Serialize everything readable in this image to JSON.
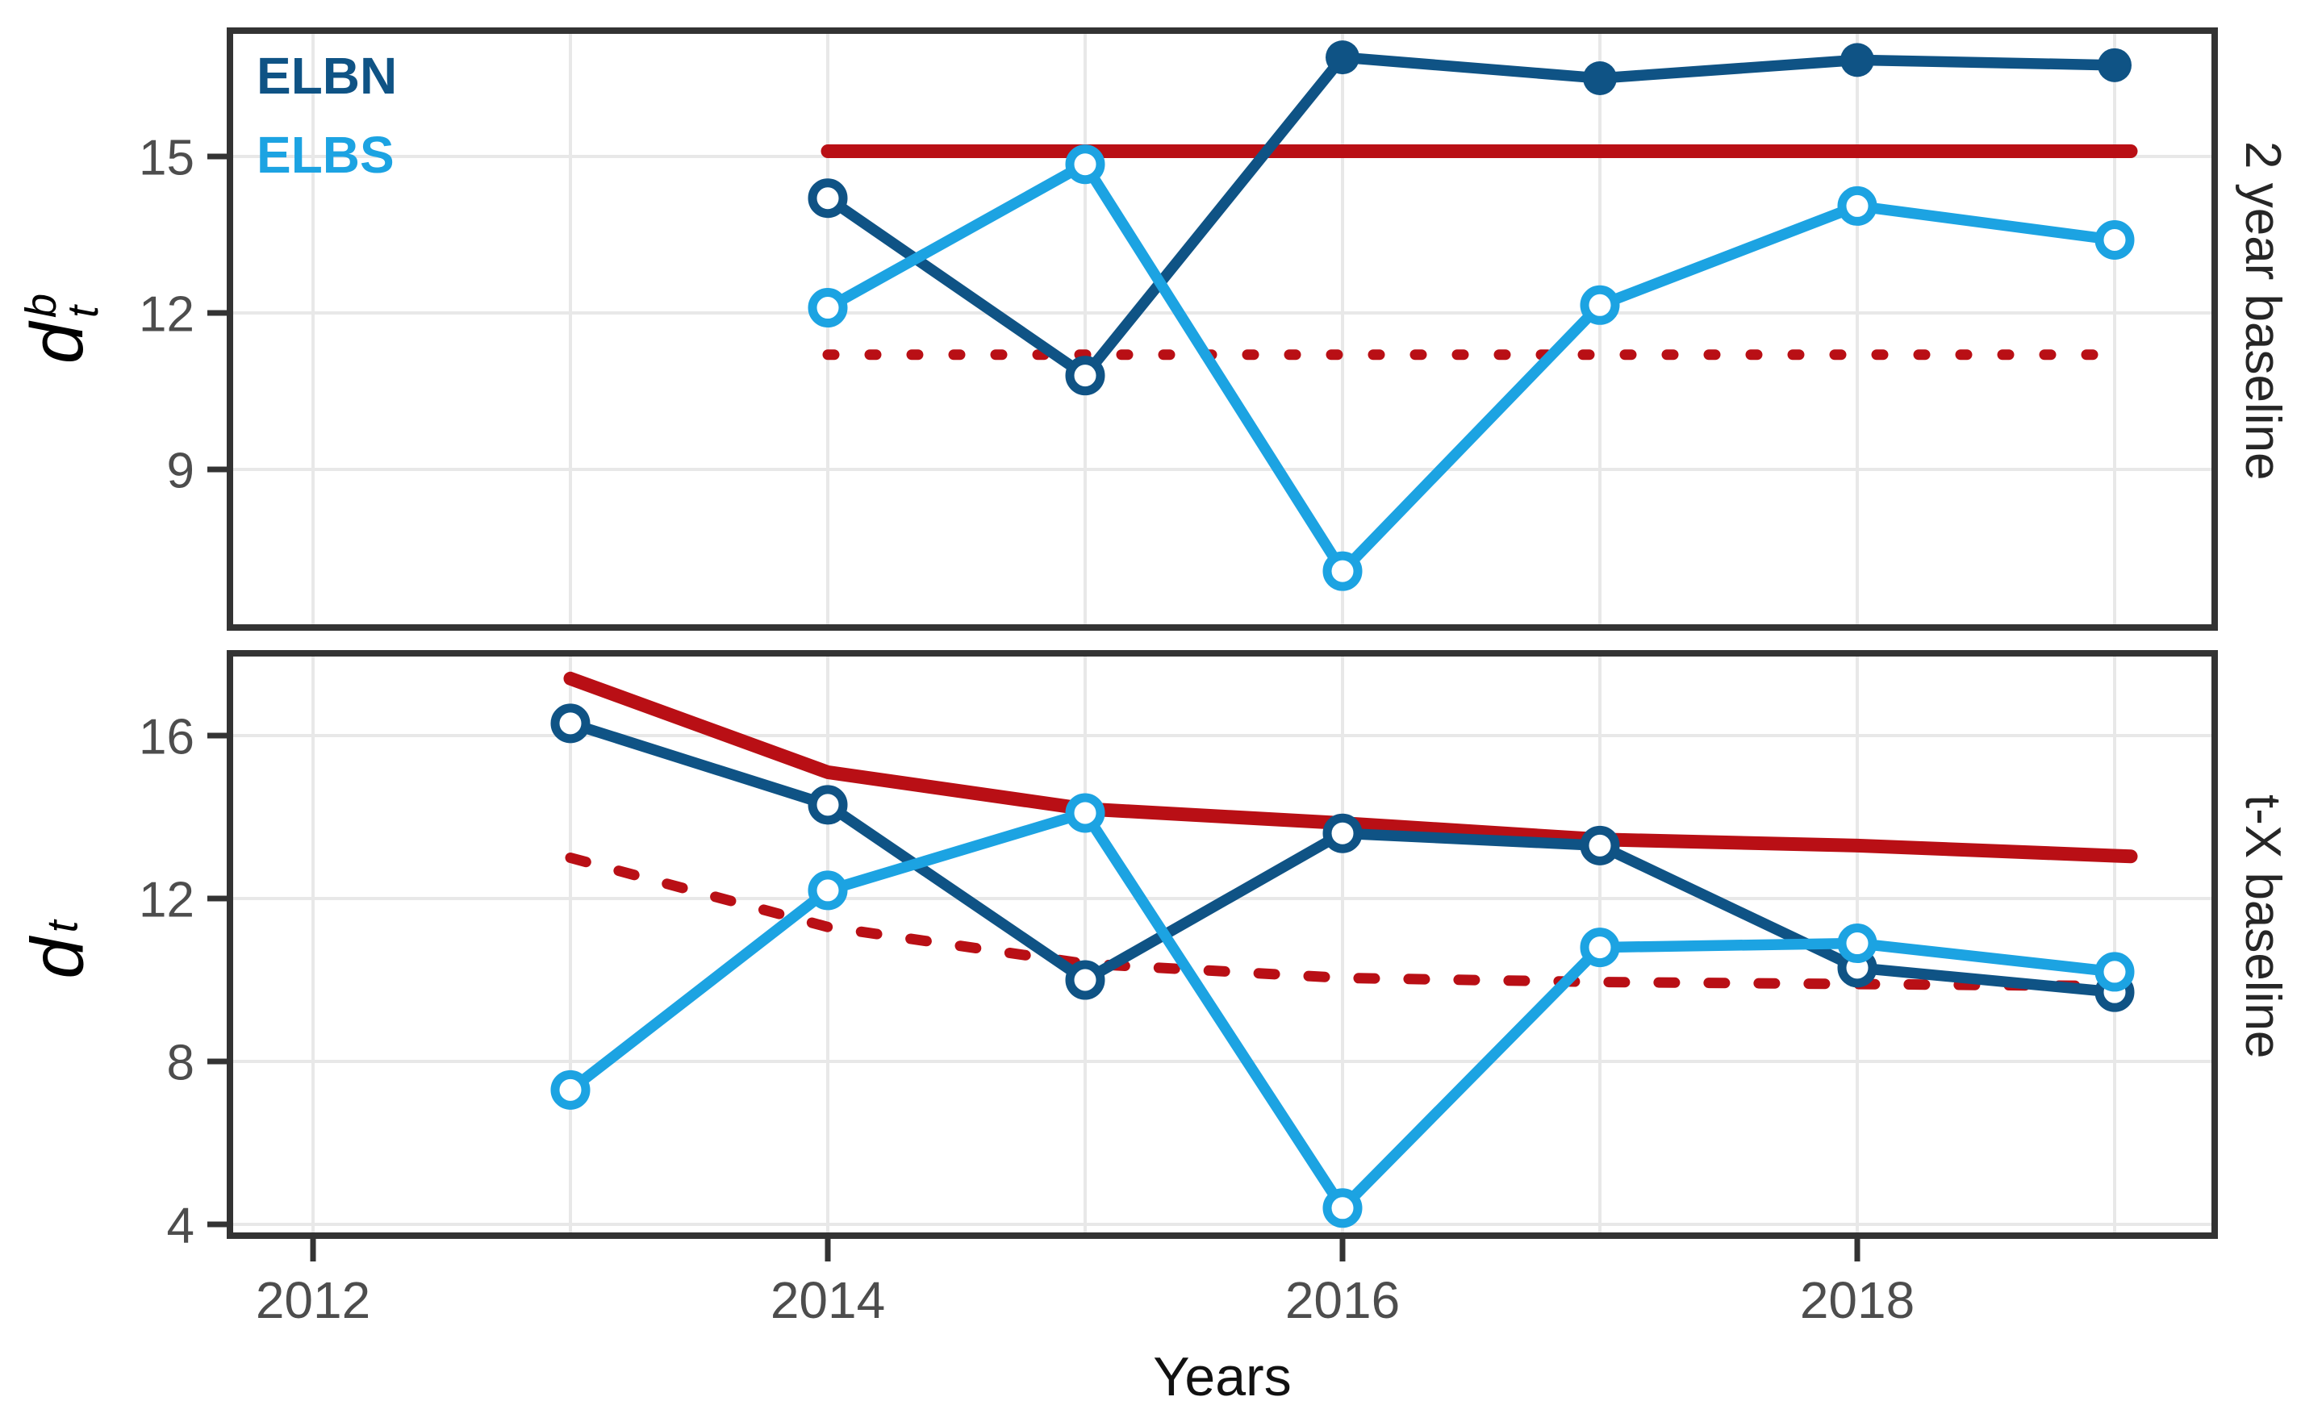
{
  "figure": {
    "x_axis_label": "Years",
    "legend": [
      {
        "label": "ELBN",
        "color": "#0F5385"
      },
      {
        "label": "ELBS",
        "color": "#1CA3E2"
      }
    ],
    "colors": {
      "elbn": "#0F5385",
      "elbs": "#1CA3E2",
      "baseline_red": "#B90F15",
      "grid": "#E8E8E8",
      "frame": "#333333",
      "tick_text": "#4D4D4D",
      "label_text": "#262626"
    }
  },
  "chart_data": [
    {
      "type": "line",
      "panel": "top",
      "title_right": "2 year baseline",
      "ylabel": {
        "base": "d",
        "sup": "b",
        "sub": "t"
      },
      "x": [
        2014,
        2015,
        2016,
        2017,
        2018,
        2019
      ],
      "x_ticks": [
        2012,
        2014,
        2016,
        2018
      ],
      "x_grid_years": [
        2012,
        2013,
        2014,
        2015,
        2016,
        2017,
        2018,
        2019
      ],
      "x_range": [
        2011.68,
        2019.39
      ],
      "y_ticks": [
        9,
        12,
        15
      ],
      "y_range": [
        5.97,
        17.45
      ],
      "grid": true,
      "legend_position": "top-left-inside",
      "series": [
        {
          "name": "baseline-dotted",
          "color": "#B90F15",
          "style": "dotted",
          "role": "baseline",
          "values": [
            11.2,
            11.2,
            11.2,
            11.2,
            11.2,
            11.2
          ]
        },
        {
          "name": "baseline-solid",
          "color": "#B90F15",
          "style": "solid",
          "role": "baseline",
          "values": [
            15.1,
            15.1,
            15.1,
            15.1,
            15.1,
            15.1
          ]
        },
        {
          "name": "ELBN",
          "color": "#0F5385",
          "style": "solid",
          "role": "data",
          "values": [
            14.2,
            10.8,
            16.9,
            16.5,
            16.85,
            16.75
          ],
          "markers": [
            "open",
            "open",
            "filled",
            "filled",
            "filled",
            "filled"
          ]
        },
        {
          "name": "ELBS",
          "color": "#1CA3E2",
          "style": "solid",
          "role": "data",
          "values": [
            12.1,
            14.85,
            7.05,
            12.15,
            14.05,
            13.4
          ],
          "markers": [
            "open",
            "open",
            "open",
            "open",
            "open",
            "open"
          ]
        }
      ]
    },
    {
      "type": "line",
      "panel": "bottom",
      "title_right": "t-X baseline",
      "ylabel": {
        "base": "d",
        "sup": "",
        "sub": "t"
      },
      "x": [
        2013,
        2014,
        2015,
        2016,
        2017,
        2018,
        2019
      ],
      "x_ticks": [
        2012,
        2014,
        2016,
        2018
      ],
      "x_grid_years": [
        2012,
        2013,
        2014,
        2015,
        2016,
        2017,
        2018,
        2019
      ],
      "x_range": [
        2011.68,
        2019.39
      ],
      "y_ticks": [
        4,
        8,
        12,
        16
      ],
      "y_range": [
        3.72,
        18.02
      ],
      "grid": true,
      "series": [
        {
          "name": "baseline-dotted",
          "color": "#B90F15",
          "style": "dotted",
          "role": "baseline",
          "values": [
            13.0,
            11.3,
            10.4,
            10.05,
            9.95,
            9.9,
            9.85
          ]
        },
        {
          "name": "baseline-solid",
          "color": "#B90F15",
          "style": "solid",
          "role": "baseline",
          "values": [
            17.4,
            15.1,
            14.2,
            13.85,
            13.45,
            13.3,
            13.05
          ]
        },
        {
          "name": "ELBN",
          "color": "#0F5385",
          "style": "solid",
          "role": "data",
          "values": [
            16.3,
            14.3,
            10.0,
            13.6,
            13.3,
            10.3,
            9.7
          ],
          "markers": [
            "open",
            "open",
            "open",
            "open",
            "open",
            "open",
            "open"
          ]
        },
        {
          "name": "ELBS",
          "color": "#1CA3E2",
          "style": "solid",
          "role": "data",
          "values": [
            7.3,
            12.2,
            14.1,
            4.4,
            10.8,
            10.9,
            10.2
          ],
          "markers": [
            "open",
            "open",
            "open",
            "open",
            "open",
            "open",
            "open"
          ]
        }
      ]
    }
  ]
}
